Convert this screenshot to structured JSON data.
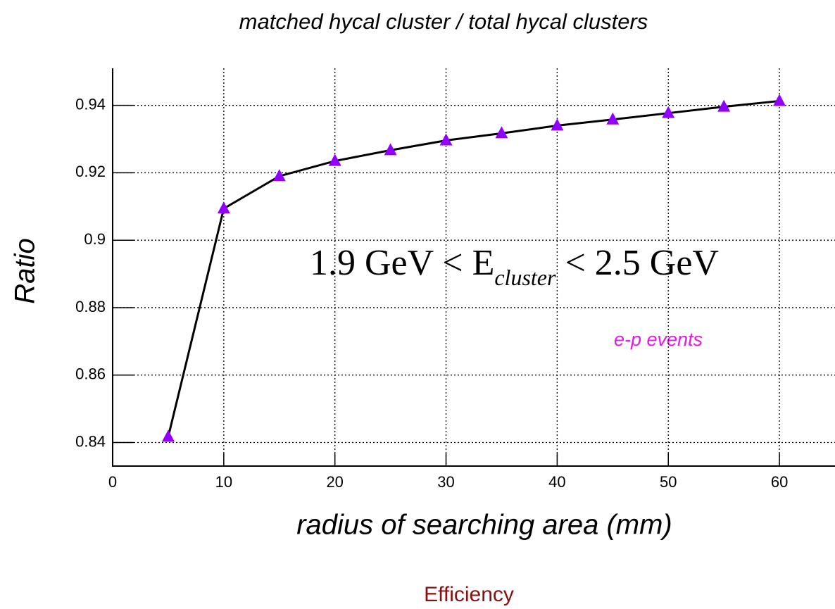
{
  "chart_data": {
    "type": "line",
    "title": "matched hycal cluster / total hycal clusters",
    "x_label": "radius of searching area (mm)",
    "y_label": "Ratio",
    "x": [
      5,
      10,
      15,
      20,
      25,
      30,
      35,
      40,
      45,
      50,
      55,
      60
    ],
    "series": [
      {
        "color": "#9100ff",
        "values": [
          0.8417,
          0.9094,
          0.919,
          0.9235,
          0.9267,
          0.9296,
          0.9317,
          0.934,
          0.9358,
          0.9377,
          0.9396,
          0.9413
        ]
      }
    ],
    "xlim": [
      0,
      65
    ],
    "xticks": [
      0,
      10,
      20,
      30,
      40,
      50,
      60
    ],
    "ylim": [
      0.833,
      0.951
    ],
    "yticks": [
      0.84,
      0.86,
      0.88,
      0.9,
      0.92,
      0.94
    ],
    "grid": true,
    "annotations": {
      "energy_before": "1.9 GeV < E",
      "energy_sub": "cluster",
      "energy_after": " < 2.5 GeV",
      "events": "e-p events"
    },
    "caption": "Efficiency"
  }
}
